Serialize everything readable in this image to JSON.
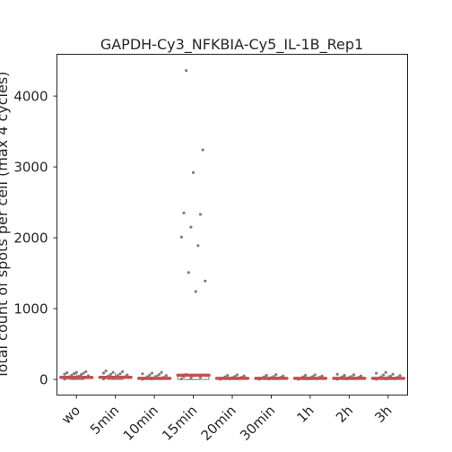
{
  "chart_data": {
    "type": "box_strip",
    "title": "GAPDH-Cy3_NFKBIA-Cy5_IL-1B_Rep1",
    "ylabel": "Total count of spots per cell (max 4 cycles)",
    "xlabel": "",
    "ylim": [
      -220,
      4590
    ],
    "yticks": [
      0,
      1000,
      2000,
      3000,
      4000
    ],
    "categories": [
      "wo",
      "5min",
      "10min",
      "15min",
      "20min",
      "30min",
      "1h",
      "2h",
      "3h"
    ],
    "grid": false,
    "median_color": "#c44e52",
    "point_color": "#7f7f7f",
    "box_edge_color": "#7f7f7f",
    "groups": [
      {
        "name": "wo",
        "q1": 20,
        "median": 28,
        "q3": 45,
        "whisker_low": 0,
        "whisker_high": 95,
        "points": [
          5,
          10,
          15,
          20,
          25,
          30,
          38,
          45,
          52,
          60,
          68,
          75,
          82,
          88,
          95,
          100,
          110
        ]
      },
      {
        "name": "5min",
        "q1": 20,
        "median": 30,
        "q3": 45,
        "whisker_low": 0,
        "whisker_high": 95,
        "points": [
          6,
          12,
          18,
          24,
          32,
          40,
          48,
          56,
          64,
          72,
          80,
          90,
          100,
          110,
          120
        ]
      },
      {
        "name": "10min",
        "q1": 8,
        "median": 15,
        "q3": 25,
        "whisker_low": 0,
        "whisker_high": 60,
        "points": [
          3,
          8,
          12,
          18,
          24,
          30,
          38,
          46,
          55,
          62,
          70,
          80,
          90,
          100
        ]
      },
      {
        "name": "15min",
        "q1": 0,
        "median": 60,
        "q3": 70,
        "whisker_low": 0,
        "whisker_high": 75,
        "points": [
          10,
          20,
          30,
          40,
          50,
          60,
          70,
          1240,
          1390,
          1510,
          1890,
          2010,
          2150,
          2330,
          2350,
          2920,
          3240,
          4360
        ]
      },
      {
        "name": "20min",
        "q1": 8,
        "median": 15,
        "q3": 22,
        "whisker_low": 0,
        "whisker_high": 45,
        "points": [
          3,
          8,
          12,
          18,
          24,
          30,
          36,
          42,
          50,
          58,
          65
        ]
      },
      {
        "name": "30min",
        "q1": 8,
        "median": 15,
        "q3": 22,
        "whisker_low": 0,
        "whisker_high": 45,
        "points": [
          3,
          8,
          12,
          18,
          24,
          30,
          36,
          42,
          50,
          58,
          68
        ]
      },
      {
        "name": "1h",
        "q1": 8,
        "median": 15,
        "q3": 22,
        "whisker_low": 0,
        "whisker_high": 45,
        "points": [
          3,
          8,
          12,
          18,
          24,
          30,
          36,
          42,
          50,
          58,
          65
        ]
      },
      {
        "name": "2h",
        "q1": 8,
        "median": 15,
        "q3": 25,
        "whisker_low": 0,
        "whisker_high": 55,
        "points": [
          3,
          8,
          12,
          18,
          24,
          30,
          36,
          42,
          50,
          58,
          66,
          74
        ]
      },
      {
        "name": "3h",
        "q1": 8,
        "median": 15,
        "q3": 25,
        "whisker_low": 0,
        "whisker_high": 60,
        "points": [
          3,
          8,
          12,
          18,
          24,
          30,
          38,
          46,
          55,
          64,
          75,
          88,
          100
        ]
      }
    ]
  }
}
